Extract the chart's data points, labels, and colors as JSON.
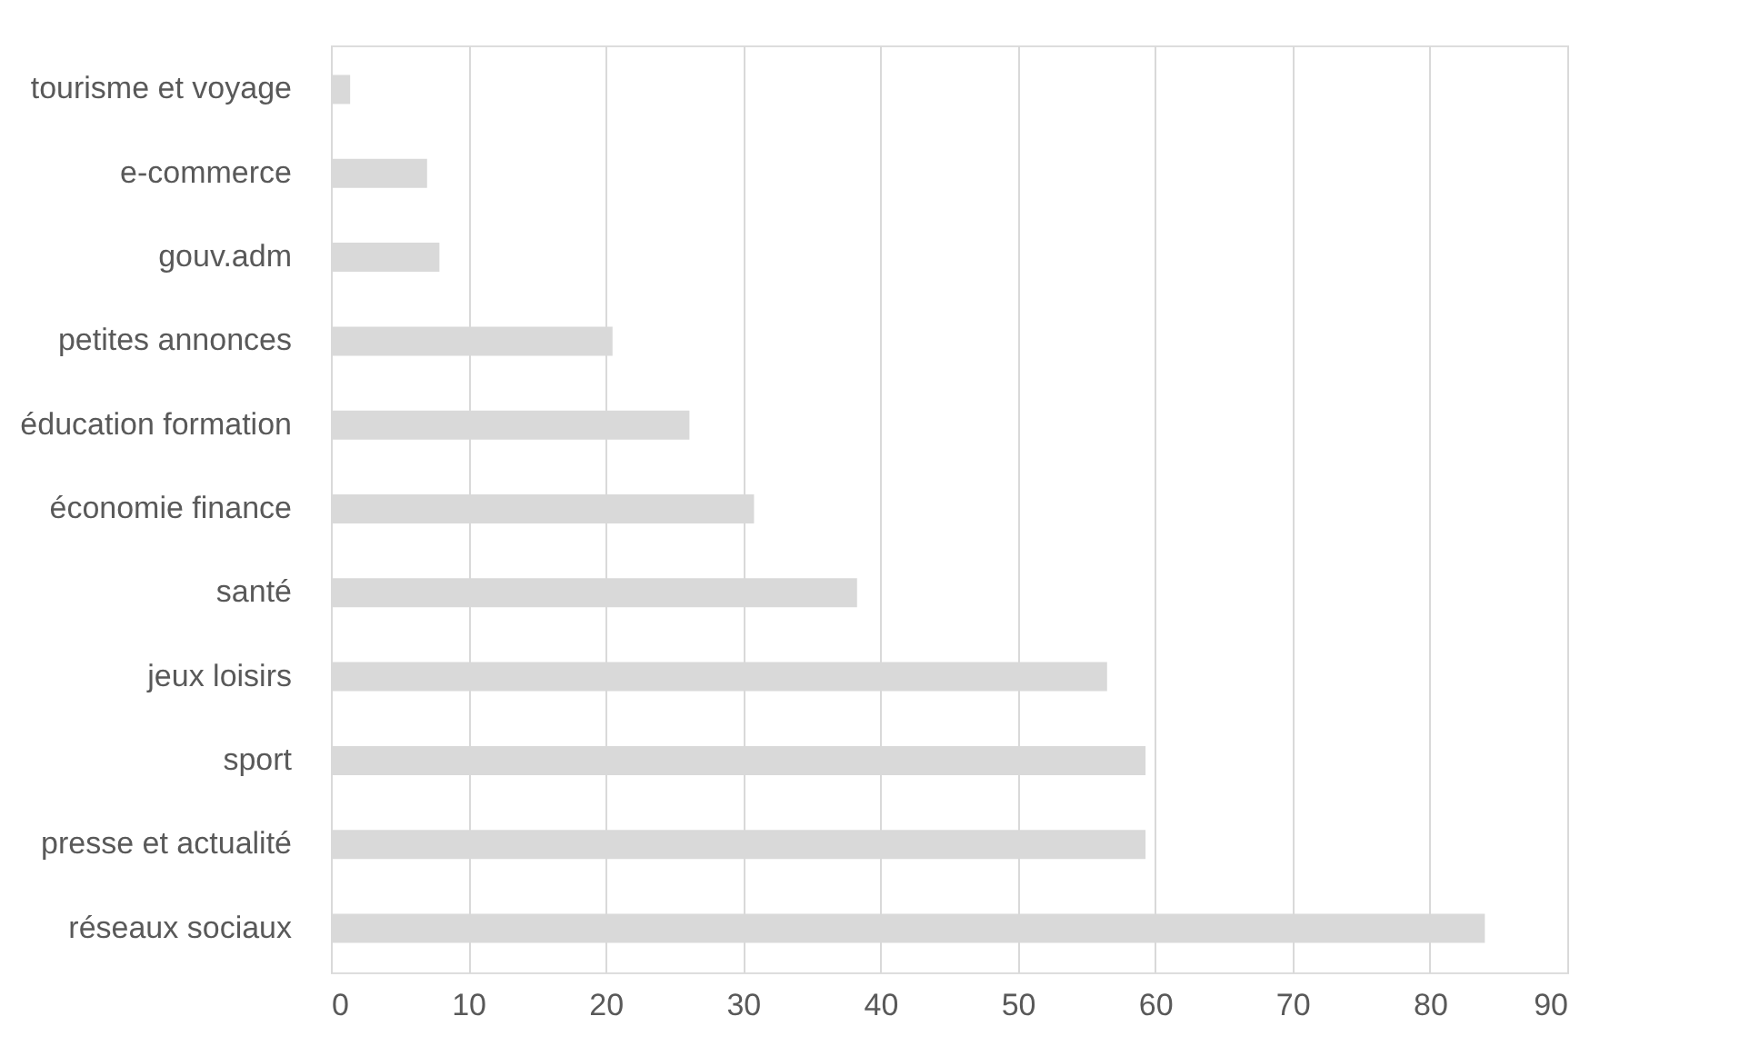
{
  "chart_data": {
    "type": "bar",
    "orientation": "horizontal",
    "categories": [
      "tourisme et voyage",
      "e-commerce",
      "gouv.adm",
      "petites annonces",
      "éducation formation",
      "économie finance",
      "santé",
      "jeux loisirs",
      "sport",
      "presse et actualité",
      "réseaux sociaux"
    ],
    "values": [
      1.4,
      7.0,
      7.9,
      20.5,
      26.1,
      30.8,
      38.3,
      56.5,
      59.3,
      59.3,
      84.0
    ],
    "color": "#d9d9d9",
    "xlim": [
      0,
      90
    ],
    "xticks": [
      0,
      10,
      20,
      30,
      40,
      50,
      60,
      70,
      80,
      90
    ],
    "grid": "x"
  }
}
